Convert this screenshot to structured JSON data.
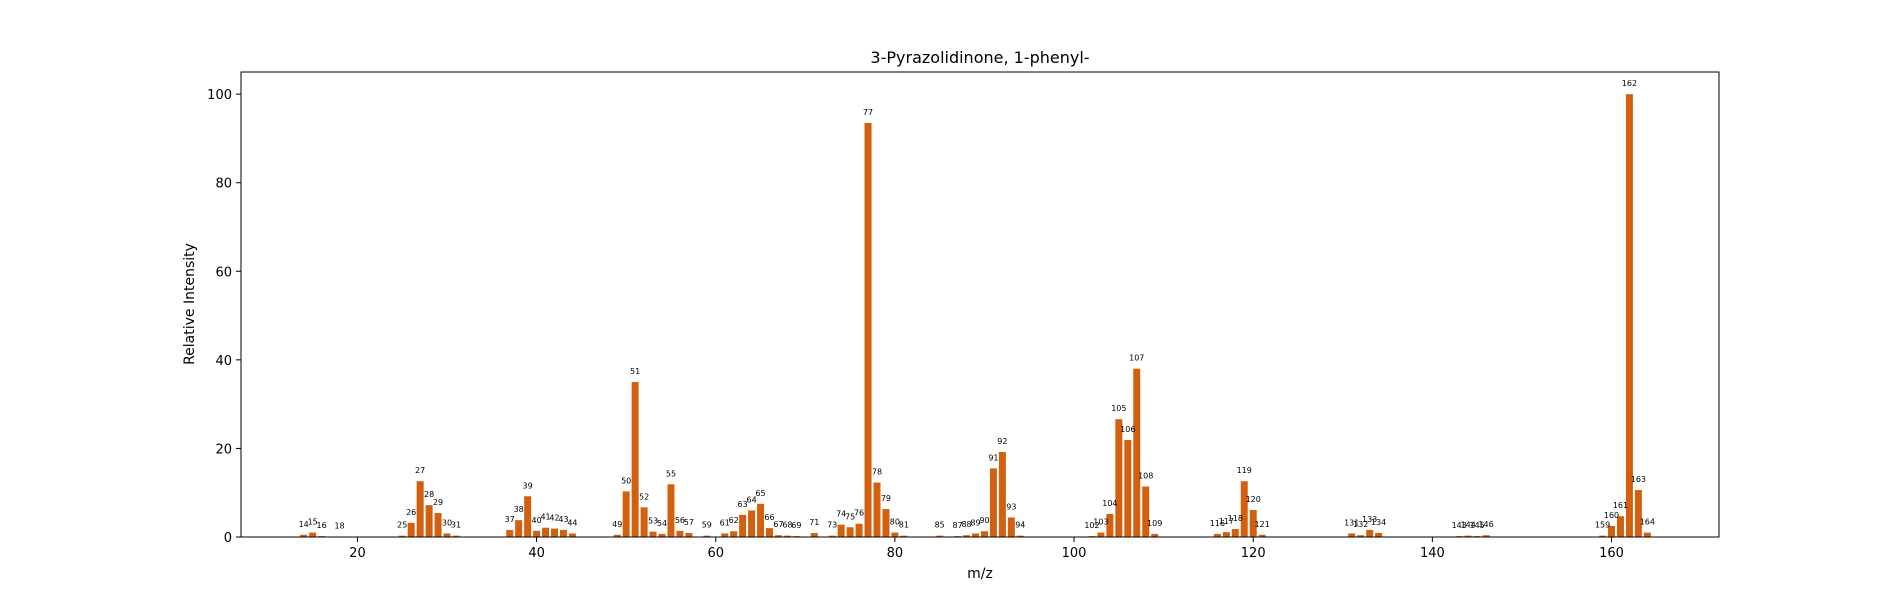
{
  "chart_data": {
    "type": "bar",
    "title": "3-Pyrazolidinone, 1-phenyl-",
    "xlabel": "m/z",
    "ylabel": "Relative Intensity",
    "xlim": [
      7,
      172
    ],
    "ylim": [
      0,
      105
    ],
    "xticks": [
      20,
      40,
      60,
      80,
      100,
      120,
      140,
      160
    ],
    "yticks": [
      0,
      20,
      40,
      60,
      80,
      100
    ],
    "grid": false,
    "bar_color": "#d2600f",
    "points": [
      {
        "x": 14,
        "y": 0.5
      },
      {
        "x": 15,
        "y": 1.0
      },
      {
        "x": 16,
        "y": 0.2
      },
      {
        "x": 18,
        "y": 0.1
      },
      {
        "x": 25,
        "y": 0.3
      },
      {
        "x": 26,
        "y": 3.2
      },
      {
        "x": 27,
        "y": 12.6
      },
      {
        "x": 28,
        "y": 7.2
      },
      {
        "x": 29,
        "y": 5.4
      },
      {
        "x": 30,
        "y": 0.8
      },
      {
        "x": 31,
        "y": 0.3
      },
      {
        "x": 37,
        "y": 1.6
      },
      {
        "x": 38,
        "y": 3.8
      },
      {
        "x": 39,
        "y": 9.2
      },
      {
        "x": 40,
        "y": 1.4
      },
      {
        "x": 41,
        "y": 2.1
      },
      {
        "x": 42,
        "y": 1.9
      },
      {
        "x": 43,
        "y": 1.6
      },
      {
        "x": 44,
        "y": 0.8
      },
      {
        "x": 49,
        "y": 0.5
      },
      {
        "x": 50,
        "y": 10.3
      },
      {
        "x": 51,
        "y": 35.0
      },
      {
        "x": 52,
        "y": 6.7
      },
      {
        "x": 53,
        "y": 1.2
      },
      {
        "x": 54,
        "y": 0.7
      },
      {
        "x": 55,
        "y": 11.9
      },
      {
        "x": 56,
        "y": 1.4
      },
      {
        "x": 57,
        "y": 0.9
      },
      {
        "x": 59,
        "y": 0.3
      },
      {
        "x": 61,
        "y": 0.8
      },
      {
        "x": 62,
        "y": 1.3
      },
      {
        "x": 63,
        "y": 5.0
      },
      {
        "x": 64,
        "y": 6.0
      },
      {
        "x": 65,
        "y": 7.5
      },
      {
        "x": 66,
        "y": 2.0
      },
      {
        "x": 67,
        "y": 0.4
      },
      {
        "x": 68,
        "y": 0.3
      },
      {
        "x": 69,
        "y": 0.2
      },
      {
        "x": 71,
        "y": 0.9
      },
      {
        "x": 73,
        "y": 0.3
      },
      {
        "x": 74,
        "y": 2.8
      },
      {
        "x": 75,
        "y": 2.2
      },
      {
        "x": 76,
        "y": 3.0
      },
      {
        "x": 77,
        "y": 93.5
      },
      {
        "x": 78,
        "y": 12.3
      },
      {
        "x": 79,
        "y": 6.3
      },
      {
        "x": 80,
        "y": 1.0
      },
      {
        "x": 81,
        "y": 0.3
      },
      {
        "x": 85,
        "y": 0.3
      },
      {
        "x": 87,
        "y": 0.2
      },
      {
        "x": 88,
        "y": 0.4
      },
      {
        "x": 89,
        "y": 0.8
      },
      {
        "x": 90,
        "y": 1.3
      },
      {
        "x": 91,
        "y": 15.5
      },
      {
        "x": 92,
        "y": 19.2
      },
      {
        "x": 93,
        "y": 4.4
      },
      {
        "x": 94,
        "y": 0.3
      },
      {
        "x": 102,
        "y": 0.2
      },
      {
        "x": 103,
        "y": 1.0
      },
      {
        "x": 104,
        "y": 5.2
      },
      {
        "x": 105,
        "y": 26.6
      },
      {
        "x": 106,
        "y": 21.9
      },
      {
        "x": 107,
        "y": 38.0
      },
      {
        "x": 108,
        "y": 11.4
      },
      {
        "x": 109,
        "y": 0.7
      },
      {
        "x": 116,
        "y": 0.7
      },
      {
        "x": 117,
        "y": 1.1
      },
      {
        "x": 118,
        "y": 1.8
      },
      {
        "x": 119,
        "y": 12.6
      },
      {
        "x": 120,
        "y": 6.1
      },
      {
        "x": 121,
        "y": 0.5
      },
      {
        "x": 131,
        "y": 0.8
      },
      {
        "x": 132,
        "y": 0.4
      },
      {
        "x": 133,
        "y": 1.6
      },
      {
        "x": 134,
        "y": 0.9
      },
      {
        "x": 143,
        "y": 0.2
      },
      {
        "x": 144,
        "y": 0.3
      },
      {
        "x": 145,
        "y": 0.2
      },
      {
        "x": 146,
        "y": 0.4
      },
      {
        "x": 159,
        "y": 0.3
      },
      {
        "x": 160,
        "y": 2.5
      },
      {
        "x": 161,
        "y": 4.7
      },
      {
        "x": 162,
        "y": 100.0
      },
      {
        "x": 163,
        "y": 10.6
      },
      {
        "x": 164,
        "y": 1.0
      }
    ]
  }
}
